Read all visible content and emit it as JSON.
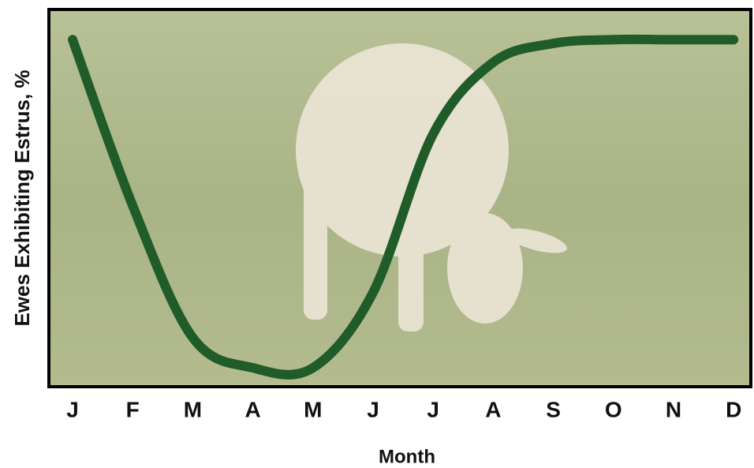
{
  "chart_data": {
    "type": "line",
    "y_label": "Ewes Exhibiting Estrus, %",
    "x_label": "Month",
    "categories": [
      "J",
      "F",
      "M",
      "A",
      "M",
      "J",
      "J",
      "A",
      "S",
      "O",
      "N",
      "D"
    ],
    "series": [
      {
        "color": "#1f5c29",
        "values": [
          92,
          48,
          13,
          5,
          5,
          25,
          67,
          86,
          91,
          92,
          92,
          92
        ]
      }
    ],
    "ylim": [
      0,
      100
    ]
  }
}
